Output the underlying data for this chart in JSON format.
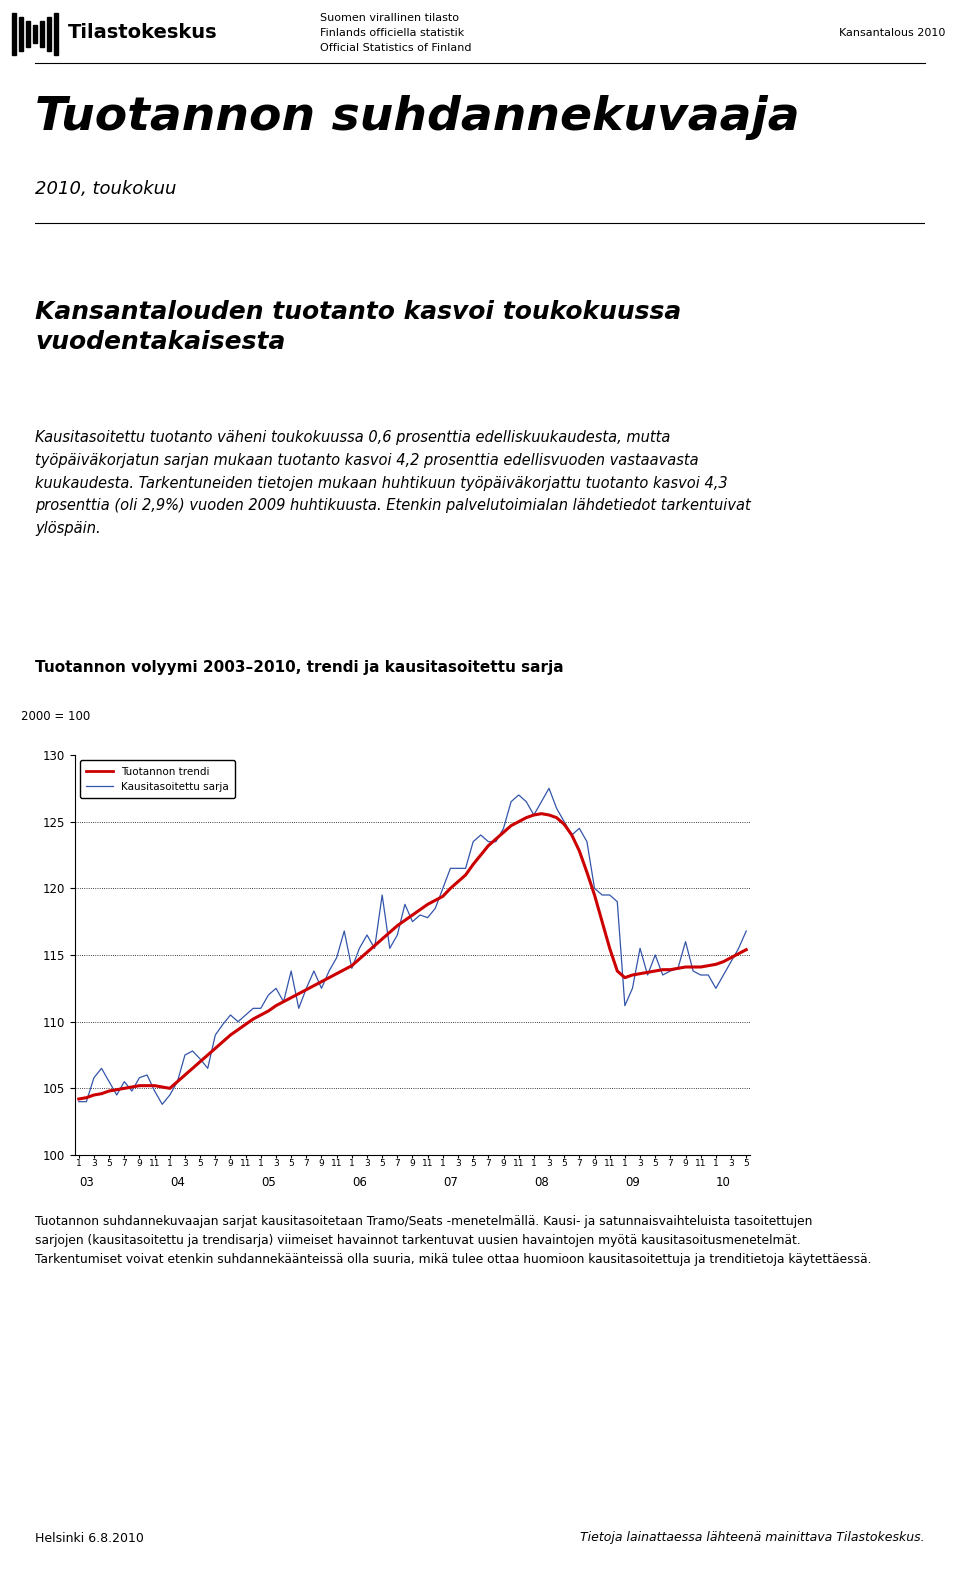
{
  "header_left": "Tilastokeskus",
  "header_center_lines": [
    "Suomen virallinen tilasto",
    "Finlands officiella statistik",
    "Official Statistics of Finland"
  ],
  "header_right": "Kansantalous 2010",
  "title_main": "Tuotannon suhdannekuvaaja",
  "title_sub": "2010, toukokuu",
  "section_title": "Kansantalouden tuotanto kasvoi toukokuussa\nvuodentakaisesta",
  "body_text_line1": "Kausitasoitettu tuotanto väheni toukokuussa 0,6 prosenttia edelliskuukaudesta, mutta",
  "body_text_line2": "työpäiväkorjatun sarjan mukaan tuotanto kasvoi 4,2 prosenttia edellisvuoden vastaavasta",
  "body_text_line3": "kuukaudesta. Tarkentuneiden tietojen mukaan huhtikuun työpäiväkorjattu tuotanto kasvoi 4,3",
  "body_text_line4": "prosenttia (oli 2,9%) vuoden 2009 huhtikuusta. Etenkin palvelutoimialan lähdetiedot tarkentuivat",
  "body_text_line5": "ylöspäin.",
  "chart_title": "Tuotannon volyymi 2003–2010, trendi ja kausitasoitettu sarja",
  "chart_ylabel": "2000 = 100",
  "legend_trend": "Tuotannon trendi",
  "legend_seasonal": "Kausitasoitettu sarja",
  "ylim": [
    100,
    130
  ],
  "yticks": [
    100,
    105,
    110,
    115,
    120,
    125,
    130
  ],
  "footer_note_line1": "Tuotannon suhdannekuvaajan sarjat kausitasoitetaan Tramo/Seats -menetelmällä. Kausi- ja satunnaisvaihteluista tasoitettujen",
  "footer_note_line2": "sarjojen (kausitasoitettu ja trendisarja) viimeiset havainnot tarkentuvat uusien havaintojen myötä kausitasoitusmenetelmät.",
  "footer_note_line3": "Tarkentumiset voivat etenkin suhdannekäänteissä olla suuria, mikä tulee ottaa huomioon kausitasoitettuja ja trenditietoja käytettäessä.",
  "footer_left": "Helsinki 6.8.2010",
  "footer_right": "Tietoja lainattaessa lähteenä mainittava Tilastokeskus.",
  "trend_color": "#cc0000",
  "seasonal_color": "#3355aa",
  "background_color": "#ffffff",
  "trend_linewidth": 2.2,
  "seasonal_linewidth": 0.9,
  "trend_data": [
    104.2,
    104.3,
    104.5,
    104.6,
    104.8,
    104.9,
    105.0,
    105.1,
    105.2,
    105.2,
    105.2,
    105.1,
    105.0,
    105.5,
    106.0,
    106.5,
    107.0,
    107.5,
    108.0,
    108.5,
    109.0,
    109.4,
    109.8,
    110.2,
    110.5,
    110.8,
    111.2,
    111.5,
    111.8,
    112.1,
    112.4,
    112.7,
    113.0,
    113.3,
    113.6,
    113.9,
    114.2,
    114.7,
    115.2,
    115.7,
    116.2,
    116.7,
    117.2,
    117.6,
    118.0,
    118.4,
    118.8,
    119.1,
    119.4,
    120.0,
    120.5,
    121.0,
    121.8,
    122.5,
    123.2,
    123.7,
    124.2,
    124.7,
    125.0,
    125.3,
    125.5,
    125.6,
    125.5,
    125.3,
    124.8,
    124.0,
    122.8,
    121.2,
    119.5,
    117.5,
    115.5,
    113.8,
    113.3,
    113.5,
    113.6,
    113.7,
    113.8,
    113.9,
    113.9,
    114.0,
    114.1,
    114.1,
    114.1,
    114.2,
    114.3,
    114.5,
    114.8,
    115.1,
    115.4
  ],
  "seasonal_data": [
    104.0,
    104.0,
    105.8,
    106.5,
    105.5,
    104.5,
    105.5,
    104.8,
    105.8,
    106.0,
    104.8,
    103.8,
    104.5,
    105.5,
    107.5,
    107.8,
    107.2,
    106.5,
    109.0,
    109.8,
    110.5,
    110.0,
    110.5,
    111.0,
    111.0,
    112.0,
    112.5,
    111.5,
    113.8,
    111.0,
    112.5,
    113.8,
    112.5,
    113.8,
    114.8,
    116.8,
    114.0,
    115.5,
    116.5,
    115.5,
    119.5,
    115.5,
    116.5,
    118.8,
    117.5,
    118.0,
    117.8,
    118.5,
    120.0,
    121.5,
    121.5,
    121.5,
    123.5,
    124.0,
    123.5,
    123.5,
    124.5,
    126.5,
    127.0,
    126.5,
    125.5,
    126.5,
    127.5,
    126.0,
    125.0,
    124.0,
    124.5,
    123.5,
    120.0,
    119.5,
    119.5,
    119.0,
    111.2,
    112.5,
    115.5,
    113.5,
    115.0,
    113.5,
    113.8,
    114.0,
    116.0,
    113.8,
    113.5,
    113.5,
    112.5,
    113.5,
    114.5,
    115.5,
    116.8
  ]
}
